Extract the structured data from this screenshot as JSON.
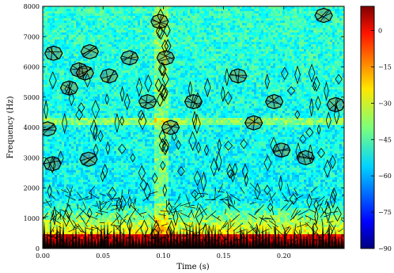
{
  "chart_data": {
    "type": "heatmap",
    "subtype": "spectrogram with contour overlay",
    "title": "",
    "xlabel": "Time (s)",
    "ylabel": "Frequency (Hz)",
    "xlim": [
      0.0,
      0.25
    ],
    "ylim": [
      0,
      8000
    ],
    "x_ticks": [
      0.0,
      0.05,
      0.1,
      0.15,
      0.2
    ],
    "x_tick_labels": [
      "0.00",
      "0.05",
      "0.10",
      "0.15",
      "0.20"
    ],
    "y_ticks": [
      0,
      1000,
      2000,
      3000,
      4000,
      5000,
      6000,
      7000,
      8000
    ],
    "y_tick_labels": [
      "0",
      "1000",
      "2000",
      "3000",
      "4000",
      "5000",
      "6000",
      "7000",
      "8000"
    ],
    "colorbar": {
      "colormap": "jet",
      "range": [
        -90,
        10
      ],
      "ticks": [
        0,
        -15,
        -30,
        -45,
        -60,
        -75,
        -90
      ],
      "tick_labels": [
        "0",
        "−15",
        "−30",
        "−45",
        "−60",
        "−75",
        "−90"
      ]
    },
    "contour_blobs": [
      {
        "t": 0.004,
        "f": 3950
      },
      {
        "t": 0.008,
        "f": 2800
      },
      {
        "t": 0.009,
        "f": 6450
      },
      {
        "t": 0.022,
        "f": 5300
      },
      {
        "t": 0.03,
        "f": 5900
      },
      {
        "t": 0.035,
        "f": 5800
      },
      {
        "t": 0.039,
        "f": 6500
      },
      {
        "t": 0.038,
        "f": 2950
      },
      {
        "t": 0.055,
        "f": 5700
      },
      {
        "t": 0.072,
        "f": 6300
      },
      {
        "t": 0.087,
        "f": 4850
      },
      {
        "t": 0.097,
        "f": 7500
      },
      {
        "t": 0.102,
        "f": 6300
      },
      {
        "t": 0.106,
        "f": 4000
      },
      {
        "t": 0.125,
        "f": 4850
      },
      {
        "t": 0.162,
        "f": 5700
      },
      {
        "t": 0.175,
        "f": 4150
      },
      {
        "t": 0.192,
        "f": 4850
      },
      {
        "t": 0.198,
        "f": 3250
      },
      {
        "t": 0.218,
        "f": 3000
      },
      {
        "t": 0.233,
        "f": 7700
      },
      {
        "t": 0.243,
        "f": 4750
      }
    ],
    "colors": {
      "contour": "#000000",
      "low": "#00007f",
      "high": "#7f0000"
    }
  }
}
